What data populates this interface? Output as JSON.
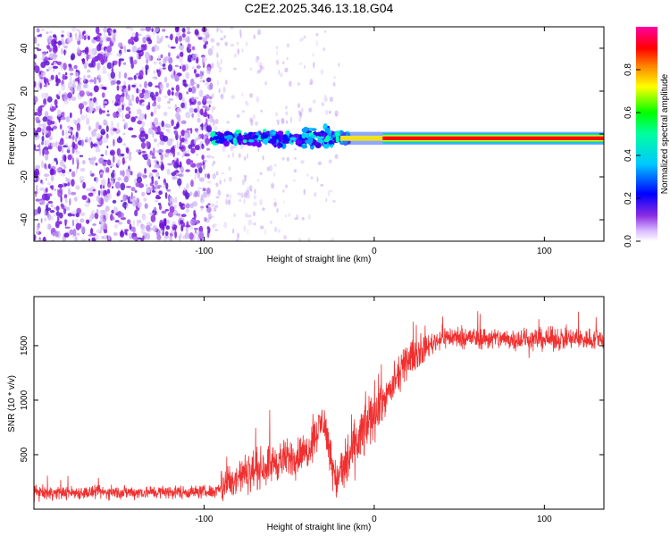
{
  "figure_title": "C2E2.2025.346.13.18.G04",
  "chart_data": [
    {
      "type": "heatmap",
      "name": "spectrogram",
      "xlabel": "Height of straight line (km)",
      "ylabel": "Frequency (Hz)",
      "xlim": [
        -200,
        135
      ],
      "ylim": [
        -50,
        50
      ],
      "xticks": [
        -100,
        0,
        100
      ],
      "yticks": [
        -40,
        -20,
        0,
        20,
        40
      ],
      "colorbar": {
        "label": "Normalized spectral amplitude",
        "range": [
          0,
          1
        ],
        "ticks": [
          "0.0",
          "0.2",
          "0.4",
          "0.6",
          "0.8"
        ],
        "tick_values": [
          0.0,
          0.2,
          0.4,
          0.6,
          0.8
        ]
      },
      "features": {
        "noise_region": [
          -200,
          -95
        ],
        "faint_noise_region": [
          -95,
          -20
        ],
        "signal_onset_height": -95,
        "tone_frequency_hz": -2,
        "strong_tone_from_height": -20,
        "saturated_tone_from_height": 5
      }
    },
    {
      "type": "line",
      "name": "snr",
      "xlabel": "Height of straight line (km)",
      "ylabel": "SNR (10 * v/v)",
      "xlim": [
        -200,
        135
      ],
      "ylim": [
        0,
        1950
      ],
      "xticks": [
        -100,
        0,
        100
      ],
      "yticks": [
        500,
        1000,
        1500
      ],
      "color": "#f03030",
      "profile": [
        {
          "x": -200,
          "y": 150
        },
        {
          "x": -95,
          "y": 160
        },
        {
          "x": -80,
          "y": 300
        },
        {
          "x": -60,
          "y": 420
        },
        {
          "x": -40,
          "y": 520
        },
        {
          "x": -30,
          "y": 820
        },
        {
          "x": -22,
          "y": 250
        },
        {
          "x": -12,
          "y": 550
        },
        {
          "x": 0,
          "y": 900
        },
        {
          "x": 10,
          "y": 1100
        },
        {
          "x": 20,
          "y": 1380
        },
        {
          "x": 40,
          "y": 1580
        },
        {
          "x": 80,
          "y": 1560
        },
        {
          "x": 135,
          "y": 1560
        }
      ]
    }
  ]
}
